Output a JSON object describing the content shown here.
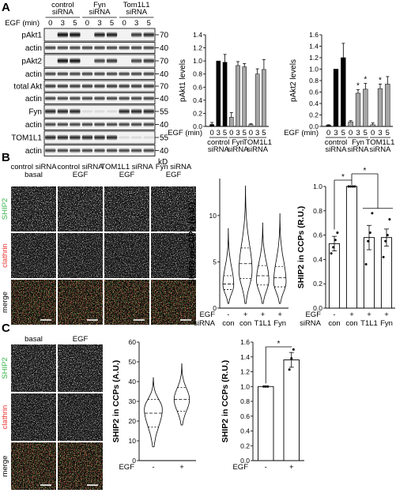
{
  "panels": {
    "A": "A",
    "B": "B",
    "C": "C"
  },
  "blot": {
    "egf_label": "EGF (min)",
    "times": [
      "0",
      "3",
      "5",
      "0",
      "3",
      "5",
      "0",
      "3",
      "5"
    ],
    "groups": [
      "control\nsiRNA",
      "Fyn\nsiRNA",
      "Tom1L1\nsiRNA"
    ],
    "rows": [
      {
        "label": "pAkt1",
        "mw": "70",
        "pattern": [
          0.05,
          0.95,
          0.95,
          0.05,
          0.85,
          0.85,
          0.05,
          0.75,
          0.8
        ]
      },
      {
        "label": "actin",
        "mw": "40",
        "pattern": [
          0.7,
          0.7,
          0.7,
          0.7,
          0.7,
          0.7,
          0.7,
          0.7,
          0.7
        ]
      },
      {
        "label": "pAkt2",
        "mw": "70",
        "pattern": [
          0.05,
          0.9,
          0.9,
          0.05,
          0.7,
          0.75,
          0.05,
          0.7,
          0.75
        ]
      },
      {
        "label": "actin",
        "mw": "40",
        "pattern": [
          0.7,
          0.7,
          0.7,
          0.7,
          0.7,
          0.7,
          0.7,
          0.7,
          0.7
        ]
      },
      {
        "label": "total Akt",
        "mw": "70",
        "pattern": [
          0.75,
          0.75,
          0.75,
          0.75,
          0.75,
          0.75,
          0.75,
          0.75,
          0.75
        ]
      },
      {
        "label": "actin",
        "mw": "40",
        "pattern": [
          0.7,
          0.7,
          0.7,
          0.7,
          0.7,
          0.7,
          0.7,
          0.7,
          0.7
        ]
      },
      {
        "label": "Fyn",
        "mw": "55",
        "pattern": [
          0.8,
          0.8,
          0.8,
          0.1,
          0.1,
          0.1,
          0.8,
          0.8,
          0.8
        ]
      },
      {
        "label": "actin",
        "mw": "40",
        "pattern": [
          0.7,
          0.7,
          0.7,
          0.7,
          0.7,
          0.7,
          0.7,
          0.7,
          0.7
        ]
      },
      {
        "label": "TOM1L1",
        "mw": "55",
        "pattern": [
          0.8,
          0.8,
          0.8,
          0.8,
          0.8,
          0.8,
          0.1,
          0.1,
          0.1
        ]
      },
      {
        "label": "actin",
        "mw": "40",
        "pattern": [
          0.7,
          0.7,
          0.7,
          0.7,
          0.7,
          0.7,
          0.7,
          0.7,
          0.7
        ]
      }
    ],
    "kd": "kD"
  },
  "micrographs_B": {
    "col_titles": [
      "control siRNA\nbasal",
      "control siRNA\nEGF",
      "TOM1L1 siRNA\nEGF",
      "Fyn siRNA\nEGF"
    ],
    "row_labels": [
      "SHIP2",
      "clathrin",
      "merge"
    ],
    "row_colors": [
      "#39b54a",
      "#e8312f",
      "#000000"
    ]
  },
  "micrographs_C": {
    "col_titles": [
      "basal",
      "EGF"
    ],
    "row_labels": [
      "SHIP2",
      "clathrin",
      "merge"
    ],
    "row_colors": [
      "#39b54a",
      "#e8312f",
      "#000000"
    ]
  },
  "chart_data": [
    {
      "type": "bar",
      "id": "pakt1",
      "ylabel": "pAkt1 levels",
      "ylim": [
        0,
        1.4
      ],
      "yticks": [
        0,
        0.2,
        0.4,
        0.6,
        0.8,
        1.0,
        1.2,
        1.4
      ],
      "egf_label": "EGF (min)",
      "times": [
        "0",
        "3",
        "5",
        "0",
        "3",
        "5",
        "0",
        "3",
        "5"
      ],
      "groups": [
        "control\nsiRNA",
        "Fyn\nsiRNA",
        "TOM1L1\nsiRNA"
      ],
      "values": [
        0.03,
        1.0,
        0.98,
        0.14,
        0.93,
        0.91,
        0.03,
        0.8,
        0.87
      ],
      "errors": [
        0.03,
        0.0,
        0.12,
        0.07,
        0.06,
        0.05,
        0.01,
        0.08,
        0.15
      ],
      "colors": [
        "#000000",
        "#000000",
        "#000000",
        "#a6a6a6",
        "#a6a6a6",
        "#a6a6a6",
        "#a6a6a6",
        "#a6a6a6",
        "#a6a6a6"
      ],
      "stars": []
    },
    {
      "type": "bar",
      "id": "pakt2",
      "ylabel": "pAkt2 levels",
      "ylim": [
        0,
        1.6
      ],
      "yticks": [
        0,
        0.2,
        0.4,
        0.6,
        0.8,
        1.0,
        1.2,
        1.4,
        1.6
      ],
      "egf_label": "EGF (min)",
      "times": [
        "0",
        "3",
        "5",
        "0",
        "3",
        "5",
        "0",
        "3",
        "5"
      ],
      "groups": [
        "control\nsiRNA",
        "Fyn\nsiRNA",
        "TOM1L1\nsiRNA"
      ],
      "values": [
        0.02,
        1.0,
        1.2,
        0.08,
        0.58,
        0.65,
        0.03,
        0.66,
        0.74
      ],
      "errors": [
        0.01,
        0.0,
        0.25,
        0.02,
        0.06,
        0.1,
        0.03,
        0.08,
        0.13
      ],
      "colors": [
        "#000000",
        "#000000",
        "#000000",
        "#a6a6a6",
        "#a6a6a6",
        "#a6a6a6",
        "#a6a6a6",
        "#a6a6a6",
        "#a6a6a6"
      ],
      "stars": [
        4,
        5,
        7
      ],
      "star_symbol": "*"
    },
    {
      "type": "violin",
      "id": "violinB",
      "ylabel": "SHIP2 in CCPs (A.U.)",
      "ylim": [
        0,
        14
      ],
      "yticks": [
        0,
        5,
        10
      ],
      "egf_row": [
        "-",
        "+",
        "+",
        "+"
      ],
      "sirna_row": [
        "con",
        "con",
        "T1L1",
        "Fyn"
      ],
      "row_labels": [
        "EGF",
        "siRNA"
      ],
      "violins": [
        {
          "min": 0.5,
          "q1": 2.0,
          "median": 2.6,
          "q3": 3.5,
          "max": 8.6,
          "mode": 2.5,
          "width": 0.7
        },
        {
          "min": 0.5,
          "q1": 3.2,
          "median": 4.8,
          "q3": 6.5,
          "max": 13.2,
          "mode": 4.0,
          "width": 0.85
        },
        {
          "min": 0.5,
          "q1": 2.5,
          "median": 3.5,
          "q3": 4.6,
          "max": 9.2,
          "mode": 3.0,
          "width": 0.8
        },
        {
          "min": 0.5,
          "q1": 2.3,
          "median": 3.3,
          "q3": 4.5,
          "max": 10.2,
          "mode": 2.8,
          "width": 0.8
        }
      ]
    },
    {
      "type": "bar",
      "id": "barB",
      "ylabel": "SHIP2 in CCPs (R.U.)",
      "ylim": [
        0,
        1.0
      ],
      "yticks": [
        0,
        0.2,
        0.4,
        0.6,
        0.8,
        1.0
      ],
      "egf_row": [
        "-",
        "+",
        "+",
        "+"
      ],
      "sirna_row": [
        "con",
        "con",
        "T1L1",
        "Fyn"
      ],
      "row_labels": [
        "EGF",
        "siRNA"
      ],
      "values": [
        0.53,
        1.0,
        0.58,
        0.58
      ],
      "errors": [
        0.06,
        0.0,
        0.1,
        0.07
      ],
      "points": [
        [
          0.45,
          0.5,
          0.56,
          0.62
        ],
        [
          1.0,
          1.0,
          1.0,
          1.0
        ],
        [
          0.36,
          0.55,
          0.62,
          0.78
        ],
        [
          0.42,
          0.55,
          0.6,
          0.73
        ]
      ],
      "sig": "*"
    },
    {
      "type": "violin",
      "id": "violinC",
      "ylabel": "SHIP2 in CCPs (A.U.)",
      "ylim": [
        0,
        60
      ],
      "yticks": [
        0,
        10,
        20,
        30,
        40,
        50,
        60
      ],
      "egf_row": [
        "-",
        "+"
      ],
      "row_labels": [
        "EGF"
      ],
      "violins": [
        {
          "min": 7,
          "q1": 17,
          "median": 24,
          "q3": 31,
          "max": 42,
          "mode": 26,
          "width": 0.7
        },
        {
          "min": 18,
          "q1": 25,
          "median": 31,
          "q3": 37,
          "max": 49,
          "mode": 31,
          "width": 0.6
        }
      ]
    },
    {
      "type": "bar",
      "id": "barC",
      "ylabel": "SHIP2 in CCPs (R.U.)",
      "ylim": [
        0,
        1.6
      ],
      "yticks": [
        0,
        0.2,
        0.4,
        0.6,
        0.8,
        1.0,
        1.2,
        1.4,
        1.6
      ],
      "egf_row": [
        "-",
        "+"
      ],
      "row_labels": [
        "EGF"
      ],
      "values": [
        1.0,
        1.36
      ],
      "errors": [
        0.0,
        0.1
      ],
      "points": [
        [
          1.0,
          1.0,
          1.0
        ],
        [
          1.23,
          1.38,
          1.5
        ]
      ],
      "sig": "*"
    }
  ]
}
